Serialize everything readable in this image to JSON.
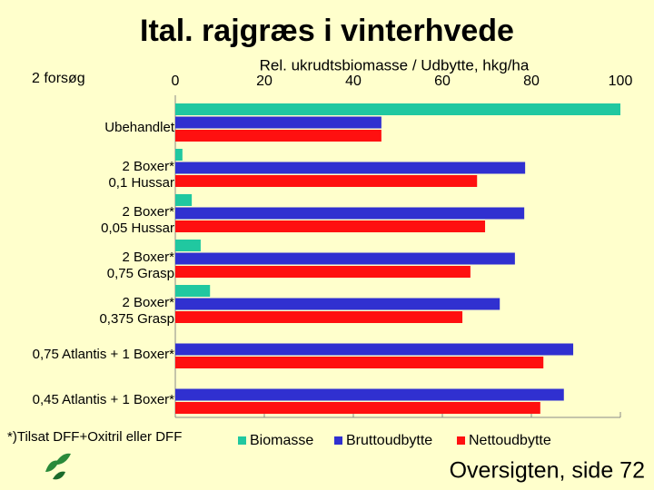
{
  "chart_data": {
    "type": "hbar",
    "title": "Ital. rajgræs i vinterhvede",
    "subtitle": "2 forsøg",
    "xlabel": "Rel. ukrudtsbiomasse / Udbytte, hkg/ha",
    "note": "*)Tilsat DFF+Oxitril eller DFF",
    "footer": "Oversigten, side 72",
    "categories": [
      [
        "Ubehandlet"
      ],
      [
        "2 Boxer*",
        "0,1 Hussar"
      ],
      [
        "2 Boxer*",
        "0,05 Hussar"
      ],
      [
        "2 Boxer*",
        "0,75 Grasp"
      ],
      [
        "2 Boxer*",
        "0,375 Grasp"
      ],
      [
        "0,75 Atlantis + 1 Boxer*"
      ],
      [
        "0,45 Atlantis + 1 Boxer*"
      ]
    ],
    "series": [
      {
        "name": "Biomasse",
        "color": "#20c8a0",
        "values": [
          100,
          1.6,
          3.7,
          5.7,
          7.8,
          0,
          0
        ]
      },
      {
        "name": "Bruttoudbytte",
        "color": "#3030d0",
        "values": [
          46.3,
          78.6,
          78.4,
          76.3,
          72.9,
          89.4,
          87.3
        ]
      },
      {
        "name": "Nettoudbytte",
        "color": "#ff1010",
        "values": [
          46.3,
          67.8,
          69.6,
          66.3,
          64.5,
          82.7,
          82.0
        ]
      }
    ],
    "xlim": [
      0,
      100
    ],
    "xticks": [
      0,
      20,
      40,
      60,
      80,
      100
    ],
    "grid": false
  }
}
